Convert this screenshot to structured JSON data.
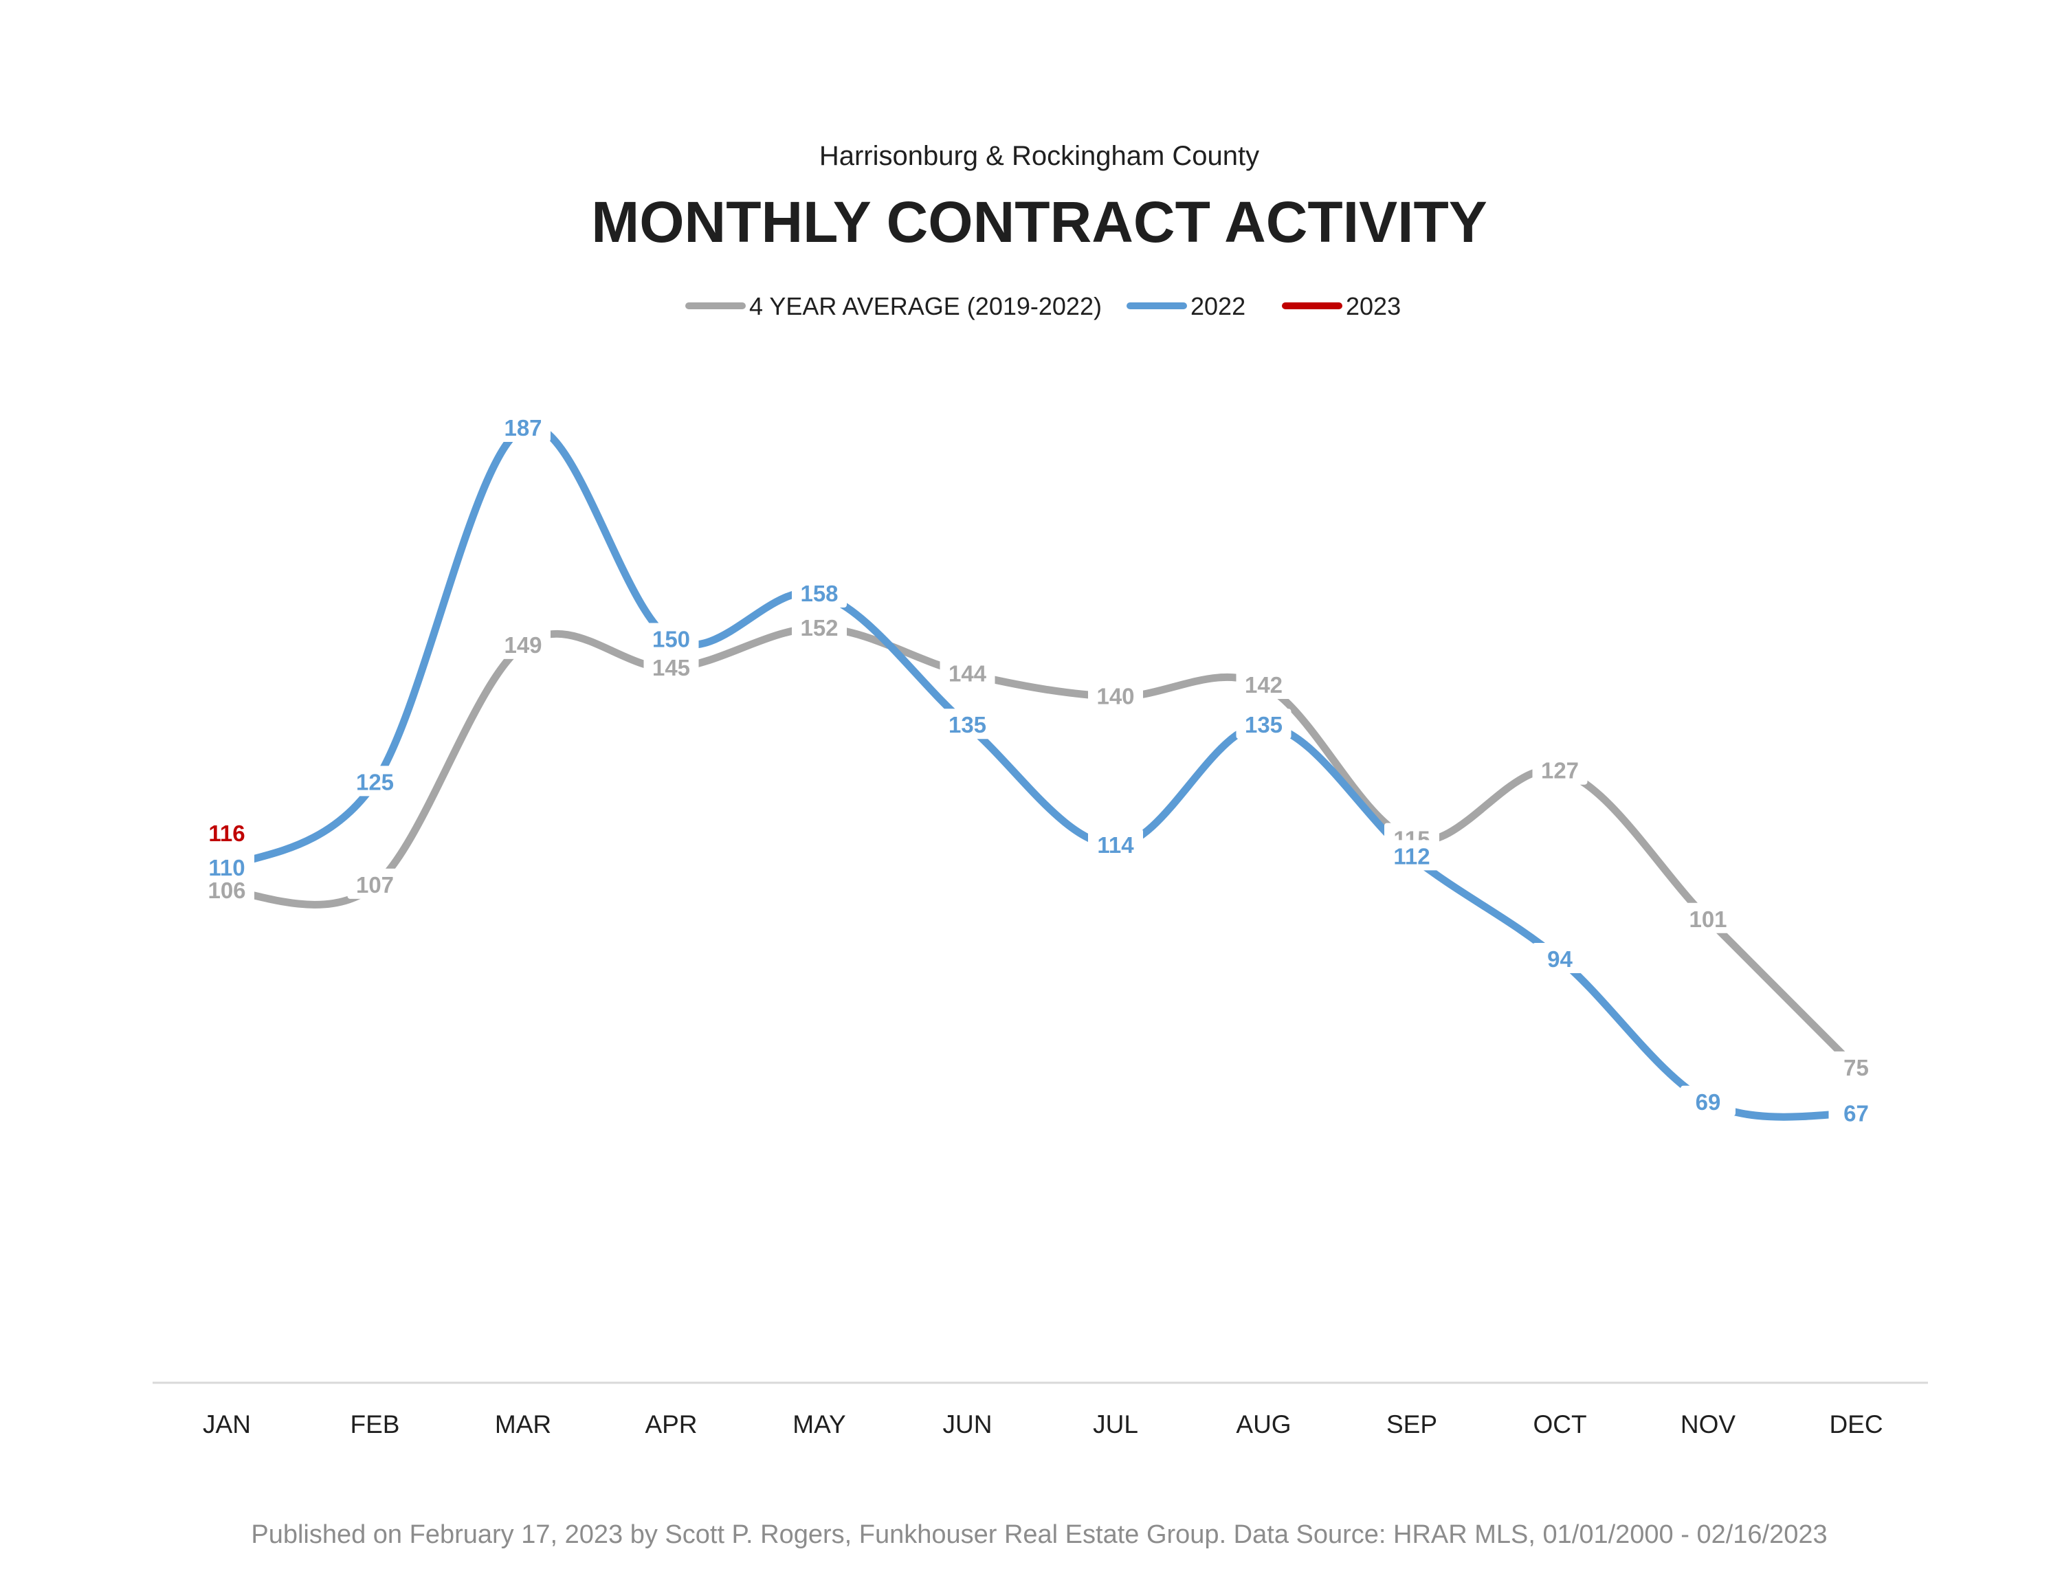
{
  "chart_data": {
    "type": "line",
    "subtitle": "Harrisonburg & Rockingham County",
    "title": "MONTHLY CONTRACT ACTIVITY",
    "categories": [
      "JAN",
      "FEB",
      "MAR",
      "APR",
      "MAY",
      "JUN",
      "JUL",
      "AUG",
      "SEP",
      "OCT",
      "NOV",
      "DEC"
    ],
    "series": [
      {
        "name": "4 YEAR AVERAGE (2019-2022)",
        "color": "#A6A6A6",
        "values": [
          106,
          107,
          149,
          145,
          152,
          144,
          140,
          142,
          115,
          127,
          101,
          75
        ]
      },
      {
        "name": "2022",
        "color": "#5B9BD5",
        "values": [
          110,
          125,
          187,
          150,
          158,
          135,
          114,
          135,
          112,
          94,
          69,
          67
        ]
      },
      {
        "name": "2023",
        "color": "#C00000",
        "values": [
          116,
          null,
          null,
          null,
          null,
          null,
          null,
          null,
          null,
          null,
          null,
          null
        ]
      }
    ],
    "ylim": [
      0,
      220
    ],
    "grid": false,
    "smooth": true,
    "legend_position": "top",
    "footer": "Published on February 17, 2023 by Scott P. Rogers, Funkhouser Real Estate Group. Data Source: HRAR MLS, 01/01/2000 - 02/16/2023"
  }
}
